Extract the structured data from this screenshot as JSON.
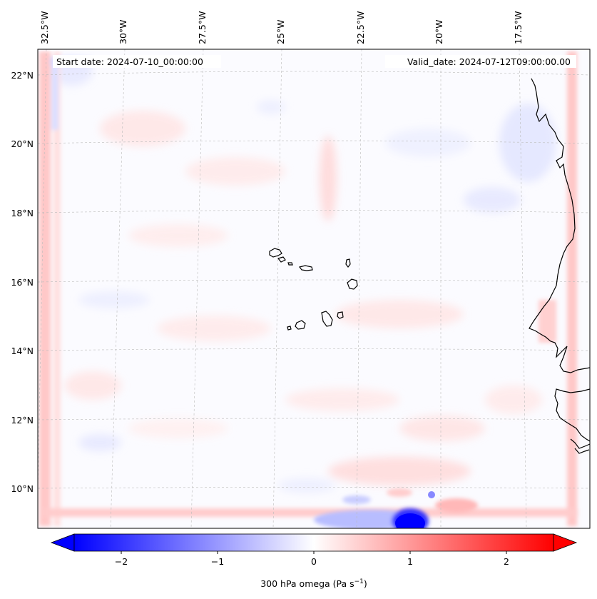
{
  "header": {
    "start_date": "Start date: 2024-07-10_00:00:00",
    "valid_date": "Valid_date: 2024-07-12T09:00:00.00"
  },
  "axes": {
    "lon_labels": [
      "32.5°W",
      "30°W",
      "27.5°W",
      "25°W",
      "22.5°W",
      "20°W",
      "17.5°W"
    ],
    "lat_labels": [
      "22°N",
      "20°N",
      "18°N",
      "16°N",
      "14°N",
      "12°N",
      "10°N"
    ]
  },
  "colorbar": {
    "ticks": [
      "−2",
      "−1",
      "0",
      "1",
      "2"
    ],
    "label_main": "300 hPa omega (Pa s",
    "label_sup": "−1",
    "label_end": ")",
    "range": [
      -2.6,
      2.6
    ],
    "tick_values": [
      -2,
      -1,
      0,
      1,
      2
    ],
    "colormap": "bwr",
    "min_color": "#0000ff",
    "mid_color": "#ffffff",
    "max_color": "#ff0000"
  },
  "map": {
    "coastline_color": "#000000",
    "gridline_color": "#bbbbbb",
    "features": [
      "Cape Verde islands",
      "West African coastline"
    ]
  }
}
